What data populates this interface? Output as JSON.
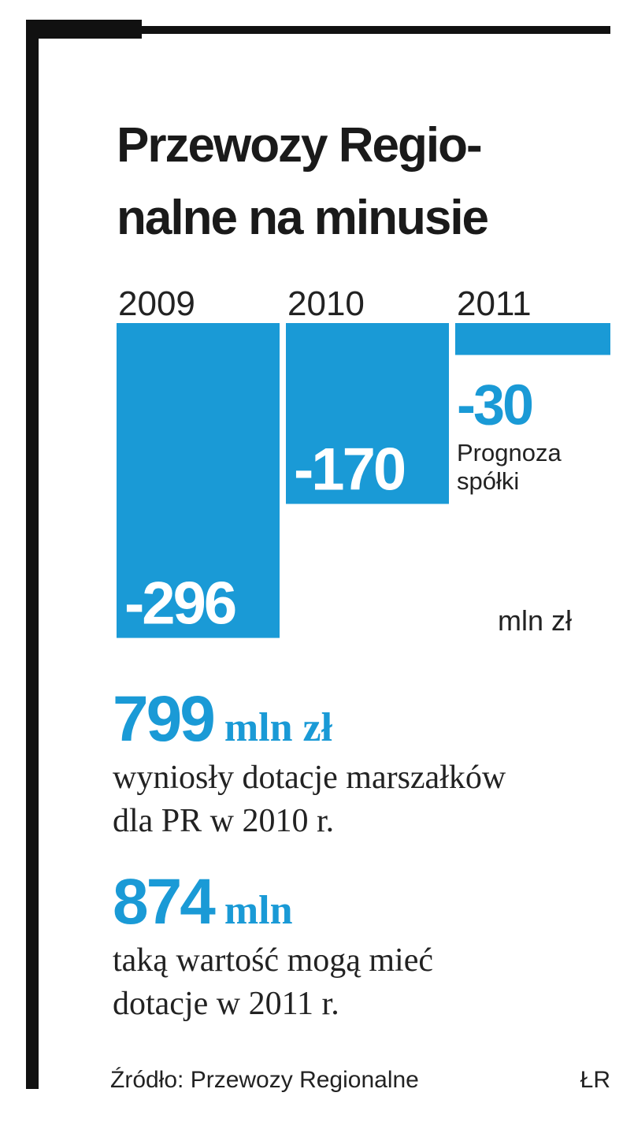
{
  "chart_data": {
    "type": "bar",
    "title_lines": [
      "Przewozy Regio-",
      "nalne na minusie"
    ],
    "categories": [
      "2009",
      "2010",
      "2011"
    ],
    "values": [
      -296,
      -170,
      -30
    ],
    "color": "#1a9ad6",
    "note_lines": [
      "Prognoza",
      "spółki"
    ],
    "unit": "mln zł"
  },
  "facts": [
    {
      "value": 799,
      "unit": "mln zł",
      "text_lines": [
        "wyniosły dotacje marszałków",
        "dla PR w 2010 r."
      ]
    },
    {
      "value": 874,
      "unit": "mln",
      "text_lines": [
        "taką wartość mogą mieć",
        "dotacje w 2011 r."
      ]
    }
  ],
  "source": "Źródło: Przewozy Regionalne",
  "credit": "ŁR"
}
